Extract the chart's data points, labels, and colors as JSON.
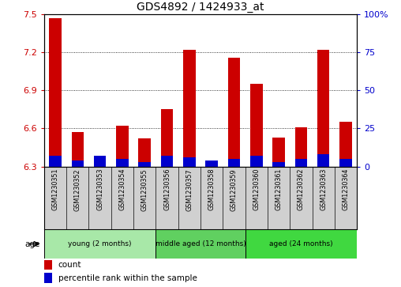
{
  "title": "GDS4892 / 1424933_at",
  "samples": [
    "GSM1230351",
    "GSM1230352",
    "GSM1230353",
    "GSM1230354",
    "GSM1230355",
    "GSM1230356",
    "GSM1230357",
    "GSM1230358",
    "GSM1230359",
    "GSM1230360",
    "GSM1230361",
    "GSM1230362",
    "GSM1230363",
    "GSM1230364"
  ],
  "count_values": [
    7.47,
    6.57,
    6.32,
    6.62,
    6.52,
    6.75,
    7.22,
    6.3,
    7.16,
    6.95,
    6.53,
    6.61,
    7.22,
    6.65
  ],
  "percentile_values": [
    7,
    4,
    7,
    5,
    3,
    7,
    6,
    4,
    5,
    7,
    3,
    5,
    8,
    5
  ],
  "ylim_left": [
    6.3,
    7.5
  ],
  "yticks_left": [
    6.3,
    6.6,
    6.9,
    7.2,
    7.5
  ],
  "ylim_right": [
    0,
    100
  ],
  "yticks_right": [
    0,
    25,
    50,
    75,
    100
  ],
  "ytick_labels_right": [
    "0",
    "25",
    "50",
    "75",
    "100%"
  ],
  "bar_base": 6.3,
  "groups": [
    {
      "label": "young (2 months)",
      "start": 0,
      "end": 5,
      "color": "#a8e8a8"
    },
    {
      "label": "middle aged (12 months)",
      "start": 5,
      "end": 9,
      "color": "#60d060"
    },
    {
      "label": "aged (24 months)",
      "start": 9,
      "end": 14,
      "color": "#40d840"
    }
  ],
  "age_label": "age",
  "count_color": "#cc0000",
  "percentile_color": "#0000cc",
  "legend_count": "count",
  "legend_percentile": "percentile rank within the sample"
}
